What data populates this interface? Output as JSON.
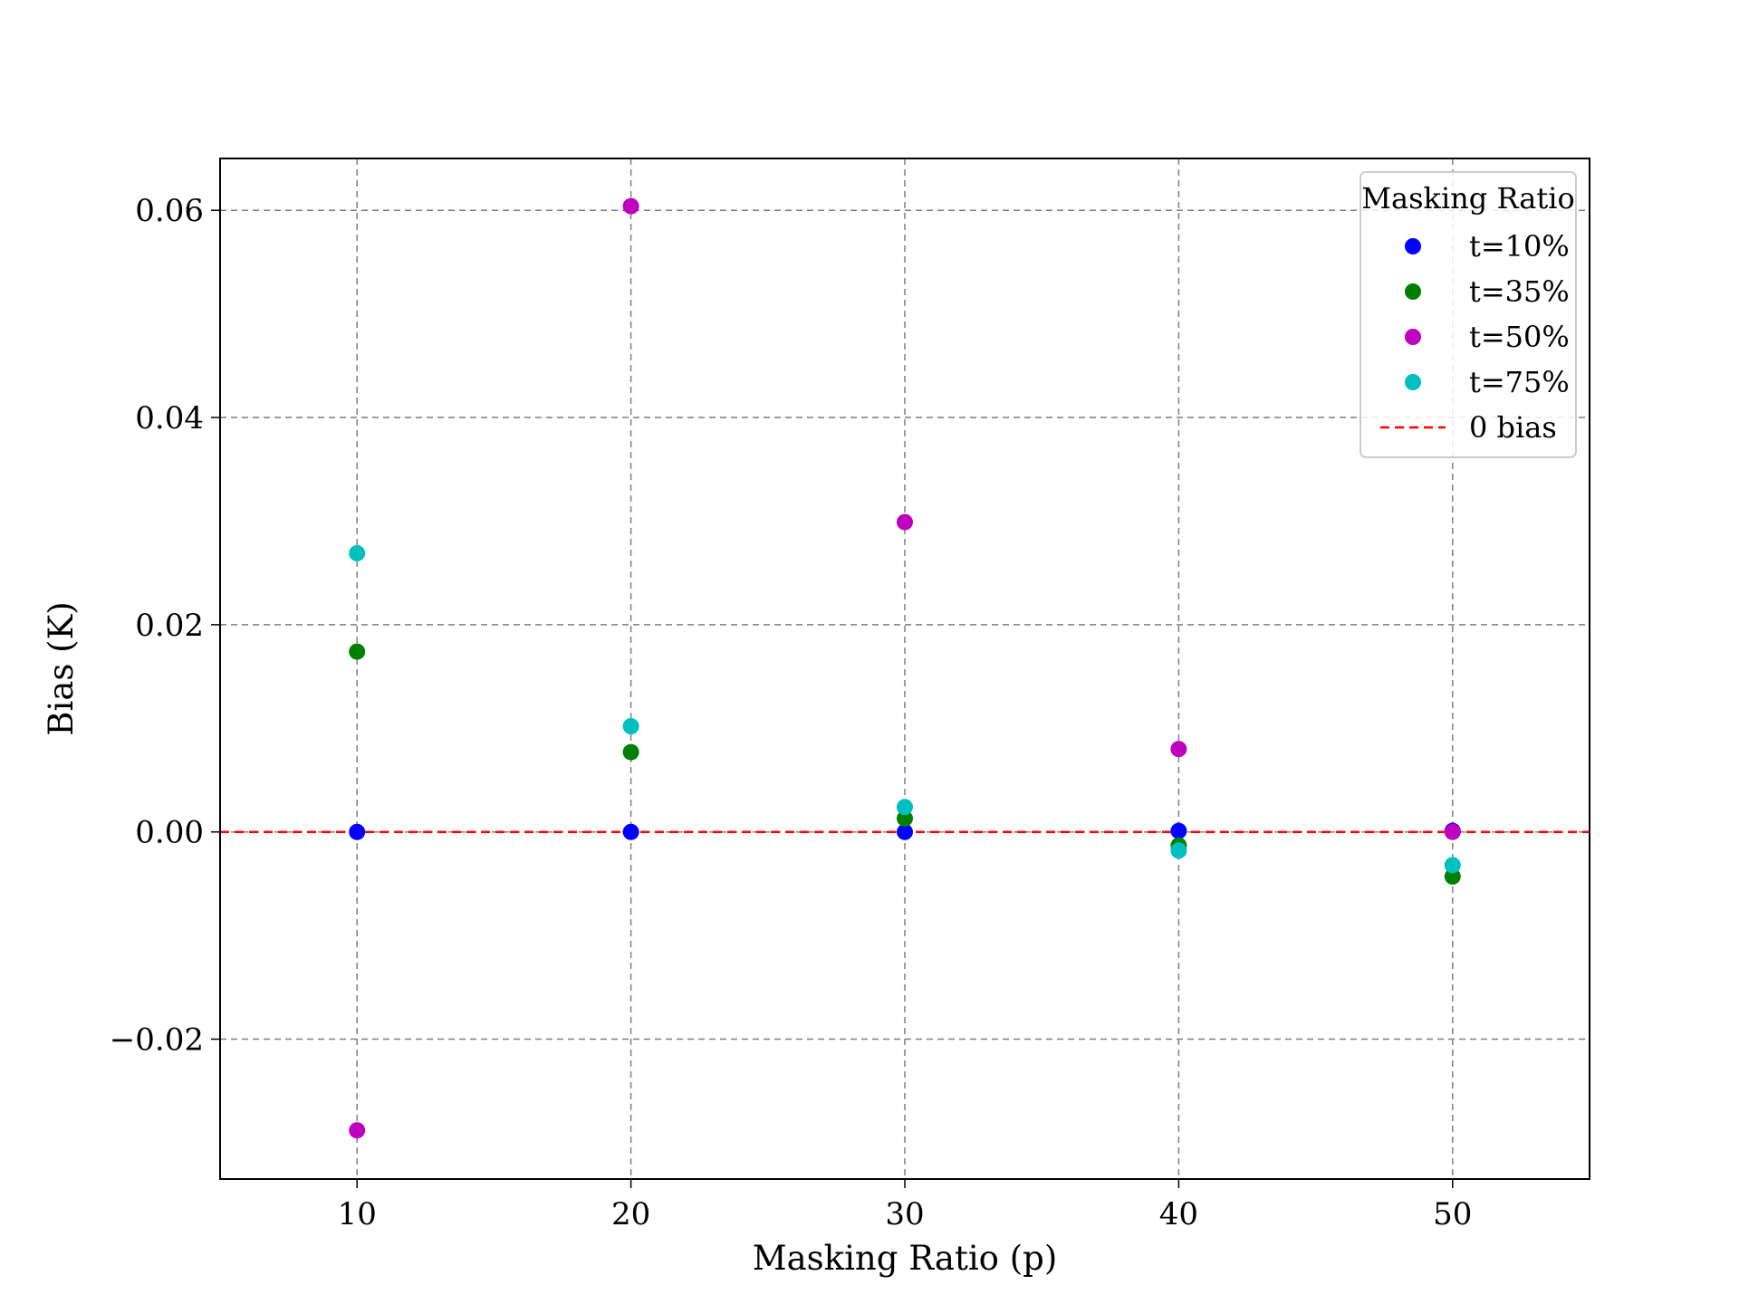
{
  "chart_data": {
    "type": "scatter",
    "xlabel": "Masking Ratio (p)",
    "ylabel": "Bias (K)",
    "xlim": [
      5,
      55
    ],
    "ylim": [
      -0.0335,
      0.065
    ],
    "xticks": [
      10,
      20,
      30,
      40,
      50
    ],
    "xtick_labels": [
      "10",
      "20",
      "30",
      "40",
      "50"
    ],
    "yticks": [
      -0.02,
      0.0,
      0.02,
      0.04,
      0.06
    ],
    "ytick_labels": [
      "−0.02",
      "0.00",
      "0.02",
      "0.04",
      "0.06"
    ],
    "grid": true,
    "legend": {
      "title": "Masking Ratio",
      "placement": "top-right"
    },
    "series": [
      {
        "name": "t=10%",
        "color": "#0000ff",
        "x": [
          10,
          20,
          30,
          40,
          50
        ],
        "y": [
          0.0,
          0.0,
          0.0,
          0.0001,
          0.0001
        ]
      },
      {
        "name": "t=35%",
        "color": "#008000",
        "x": [
          10,
          20,
          30,
          40,
          50
        ],
        "y": [
          0.0174,
          0.0077,
          0.0013,
          -0.0013,
          -0.0043
        ]
      },
      {
        "name": "t=50%",
        "color": "#bf00bf",
        "x": [
          10,
          20,
          30,
          40,
          50
        ],
        "y": [
          -0.0288,
          0.0604,
          0.0299,
          0.008,
          0.0
        ]
      },
      {
        "name": "t=75%",
        "color": "#00bfbf",
        "x": [
          10,
          20,
          30,
          40,
          50
        ],
        "y": [
          0.0269,
          0.0102,
          0.0024,
          -0.0018,
          -0.0032
        ]
      }
    ],
    "reference_line": {
      "name": "0 bias",
      "y": 0.0,
      "color": "#ff0000",
      "style": "dashed"
    }
  }
}
